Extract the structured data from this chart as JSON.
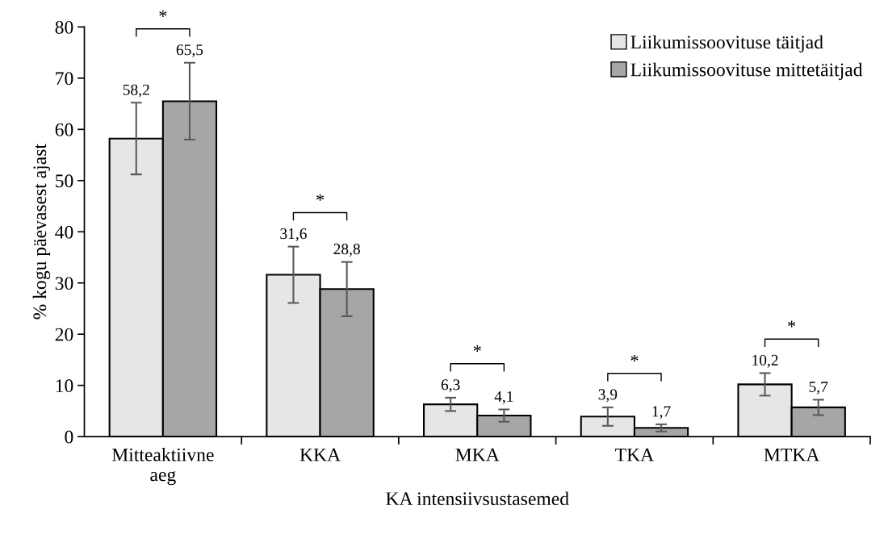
{
  "chart_data": {
    "type": "bar",
    "xlabel": "KA intensiivsustasemed",
    "ylabel": "% kogu päevasest ajast",
    "categories": [
      "Mitteaktiivne aeg",
      "KKA",
      "MKA",
      "TKA",
      "MTKA"
    ],
    "series": [
      {
        "name": "Liikumissoovituse täitjad",
        "color": "#e6e6e6",
        "values": [
          58.2,
          31.6,
          6.3,
          3.9,
          10.2
        ],
        "errors": [
          7.0,
          5.5,
          1.3,
          1.8,
          2.2
        ],
        "value_labels": [
          "58,2",
          "31,6",
          "6,3",
          "3,9",
          "10,2"
        ]
      },
      {
        "name": "Liikumissoovituse mittetäitjad",
        "color": "#a6a6a6",
        "values": [
          65.5,
          28.8,
          4.1,
          1.7,
          5.7
        ],
        "errors": [
          7.5,
          5.3,
          1.2,
          0.7,
          1.5
        ],
        "value_labels": [
          "65,5",
          "28,8",
          "4,1",
          "1,7",
          "5,7"
        ]
      }
    ],
    "ylim": [
      0,
      80
    ],
    "yticks": [
      0,
      10,
      20,
      30,
      40,
      50,
      60,
      70,
      80
    ],
    "grid": false,
    "legend": "top right",
    "annotations": [
      "*",
      "*",
      "*",
      "*",
      "*"
    ]
  }
}
